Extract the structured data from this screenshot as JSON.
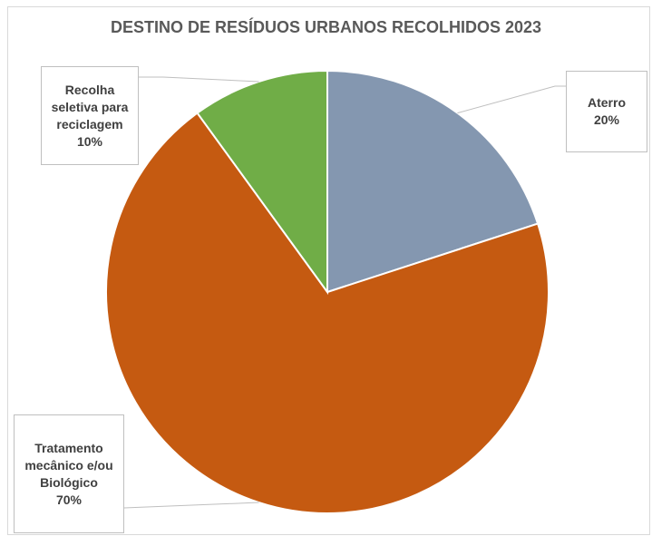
{
  "chart_data": {
    "type": "pie",
    "title": "DESTINO DE RESÍDUOS URBANOS RECOLHIDOS 2023",
    "categories": [
      "Aterro",
      "Tratamento mecânico e/ou Biológico",
      "Recolha seletiva para reciclagem"
    ],
    "values": [
      20,
      70,
      10
    ],
    "value_labels": [
      "20%",
      "70%",
      "10%"
    ],
    "colors": [
      "#8497b0",
      "#c55a11",
      "#70ad47"
    ]
  }
}
